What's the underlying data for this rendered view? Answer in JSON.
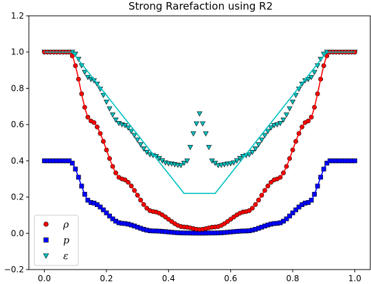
{
  "chart_data": {
    "type": "scatter",
    "title": "Strong Rarefaction using R2",
    "xlabel": "",
    "ylabel": "",
    "xlim": [
      -0.05,
      1.05
    ],
    "ylim": [
      -0.2,
      1.2
    ],
    "xticks": [
      0.0,
      0.2,
      0.4,
      0.6,
      0.8,
      1.0
    ],
    "yticks": [
      -0.2,
      0.0,
      0.2,
      0.4,
      0.6,
      0.8,
      1.0,
      1.2
    ],
    "xtick_labels": [
      "0.0",
      "0.2",
      "0.4",
      "0.6",
      "0.8",
      "1.0"
    ],
    "ytick_labels": [
      "−0.2",
      "0.0",
      "0.2",
      "0.4",
      "0.6",
      "0.8",
      "1.0",
      "1.2"
    ],
    "grid": false,
    "legend_position": "lower-left",
    "n_points": 101,
    "series": [
      {
        "name": "ρ",
        "marker": "circle",
        "color": "#ff0000",
        "exact": [
          [
            0.0,
            1.0
          ],
          [
            0.08,
            1.0
          ],
          [
            0.15,
            0.62
          ],
          [
            0.25,
            0.3
          ],
          [
            0.35,
            0.12
          ],
          [
            0.45,
            0.035
          ],
          [
            0.5,
            0.021
          ],
          [
            0.55,
            0.035
          ],
          [
            0.65,
            0.12
          ],
          [
            0.75,
            0.3
          ],
          [
            0.85,
            0.62
          ],
          [
            0.92,
            1.0
          ],
          [
            1.0,
            1.0
          ]
        ],
        "points": [
          [
            0.0,
            1.0
          ],
          [
            0.08,
            1.0
          ],
          [
            0.15,
            0.62
          ],
          [
            0.25,
            0.3
          ],
          [
            0.35,
            0.12
          ],
          [
            0.45,
            0.035
          ],
          [
            0.5,
            0.021
          ],
          [
            0.55,
            0.035
          ],
          [
            0.65,
            0.12
          ],
          [
            0.75,
            0.3
          ],
          [
            0.85,
            0.62
          ],
          [
            0.92,
            1.0
          ],
          [
            1.0,
            1.0
          ]
        ]
      },
      {
        "name": "p",
        "marker": "square",
        "color": "#0000ff",
        "exact": [
          [
            0.0,
            0.4
          ],
          [
            0.08,
            0.4
          ],
          [
            0.15,
            0.17
          ],
          [
            0.25,
            0.055
          ],
          [
            0.35,
            0.013
          ],
          [
            0.45,
            0.002
          ],
          [
            0.5,
            0.001
          ],
          [
            0.55,
            0.002
          ],
          [
            0.65,
            0.013
          ],
          [
            0.75,
            0.055
          ],
          [
            0.85,
            0.17
          ],
          [
            0.92,
            0.4
          ],
          [
            1.0,
            0.4
          ]
        ],
        "points": [
          [
            0.0,
            0.4
          ],
          [
            0.08,
            0.4
          ],
          [
            0.15,
            0.17
          ],
          [
            0.25,
            0.055
          ],
          [
            0.35,
            0.013
          ],
          [
            0.45,
            0.002
          ],
          [
            0.5,
            0.001
          ],
          [
            0.55,
            0.002
          ],
          [
            0.65,
            0.013
          ],
          [
            0.75,
            0.055
          ],
          [
            0.85,
            0.17
          ],
          [
            0.92,
            0.4
          ],
          [
            1.0,
            0.4
          ]
        ]
      },
      {
        "name": "ε",
        "marker": "triangle-down",
        "color": "#00c0c0",
        "exact": [
          [
            0.0,
            1.0
          ],
          [
            0.09,
            1.0
          ],
          [
            0.45,
            0.22
          ],
          [
            0.55,
            0.22
          ],
          [
            0.91,
            1.0
          ],
          [
            1.0,
            1.0
          ]
        ],
        "points": [
          [
            0.0,
            1.0
          ],
          [
            0.09,
            1.0
          ],
          [
            0.15,
            0.85
          ],
          [
            0.25,
            0.6
          ],
          [
            0.35,
            0.43
          ],
          [
            0.4,
            0.385
          ],
          [
            0.44,
            0.375
          ],
          [
            0.46,
            0.4
          ],
          [
            0.48,
            0.55
          ],
          [
            0.5,
            0.66
          ],
          [
            0.52,
            0.55
          ],
          [
            0.54,
            0.4
          ],
          [
            0.56,
            0.375
          ],
          [
            0.6,
            0.385
          ],
          [
            0.65,
            0.43
          ],
          [
            0.75,
            0.6
          ],
          [
            0.85,
            0.85
          ],
          [
            0.91,
            1.0
          ],
          [
            1.0,
            1.0
          ]
        ]
      }
    ]
  }
}
